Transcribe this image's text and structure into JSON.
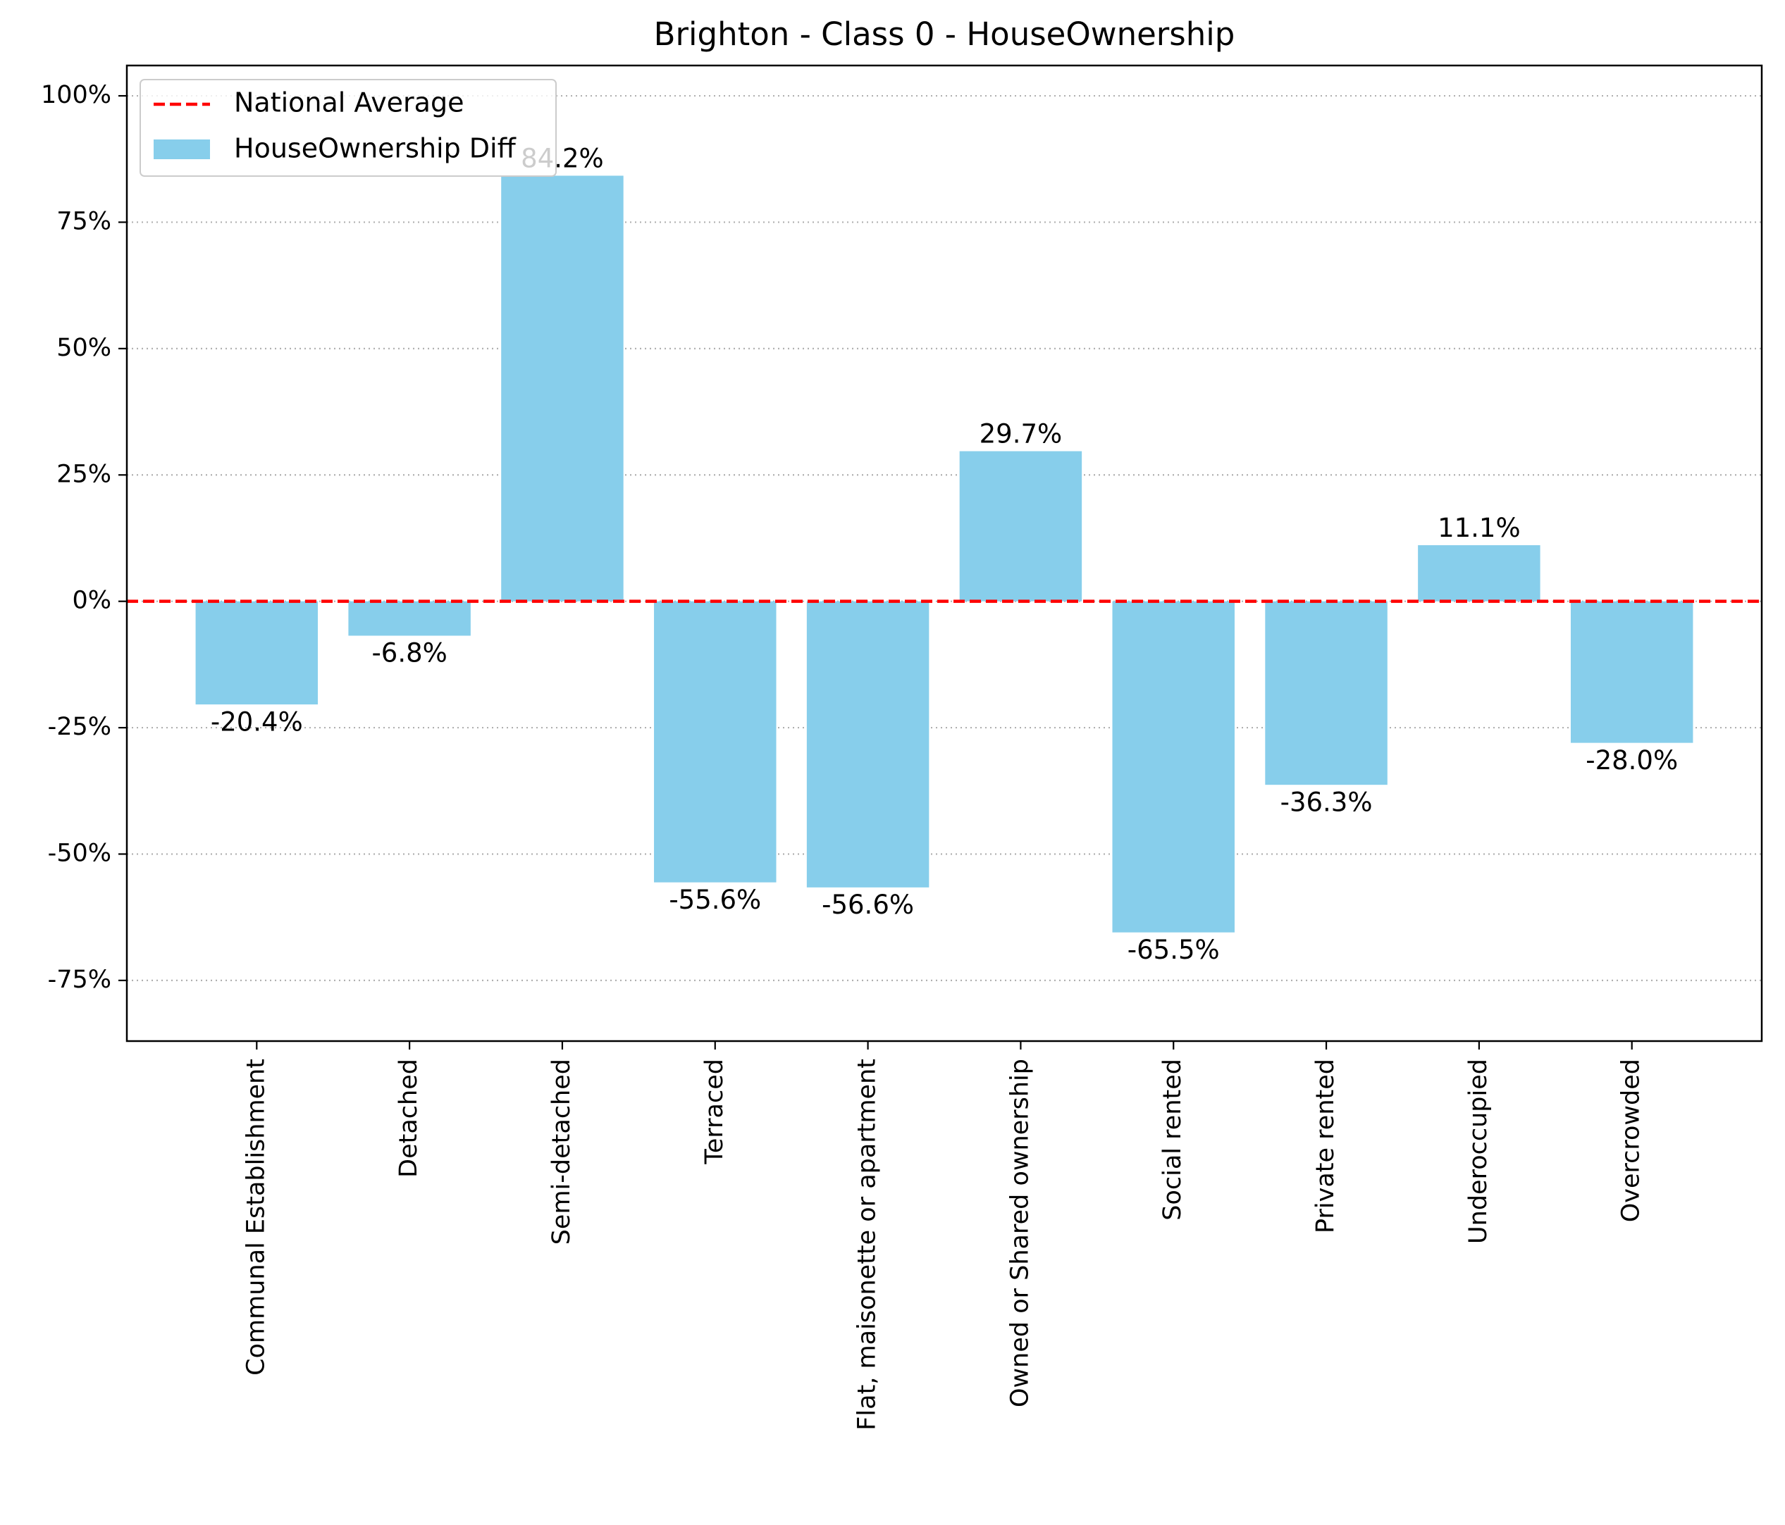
{
  "chart_data": {
    "type": "bar",
    "title": "Brighton - Class 0 - HouseOwnership",
    "xlabel": "",
    "ylabel": "",
    "categories": [
      "Communal Establishment",
      "Detached",
      "Semi-detached",
      "Terraced",
      "Flat, maisonette or apartment",
      "Owned or Shared ownership",
      "Social rented",
      "Private rented",
      "Underoccupied",
      "Overcrowded"
    ],
    "series": [
      {
        "name": "HouseOwnership Diff",
        "values": [
          -20.4,
          -6.8,
          84.2,
          -55.6,
          -56.6,
          29.7,
          -65.5,
          -36.3,
          11.1,
          -28.0
        ],
        "labels": [
          "-20.4%",
          "-6.8%",
          "84.2%",
          "-55.6%",
          "-56.6%",
          "29.7%",
          "-65.5%",
          "-36.3%",
          "11.1%",
          "-28.0%"
        ],
        "color": "#87ceeb"
      }
    ],
    "reference_line": {
      "name": "National Average",
      "value": 0,
      "color": "#ff0000",
      "style": "dashed"
    },
    "ylim": [
      -87,
      106
    ],
    "yticks": [
      -75,
      -50,
      -25,
      0,
      25,
      50,
      75,
      100
    ],
    "ytick_labels": [
      "-75%",
      "-50%",
      "-25%",
      "0%",
      "25%",
      "50%",
      "75%",
      "100%"
    ],
    "grid": {
      "y": true,
      "x": false,
      "style": "dotted",
      "color": "#b0b0b0"
    },
    "legend": {
      "position": "top-left",
      "entries": [
        "National Average",
        "HouseOwnership Diff"
      ]
    }
  }
}
